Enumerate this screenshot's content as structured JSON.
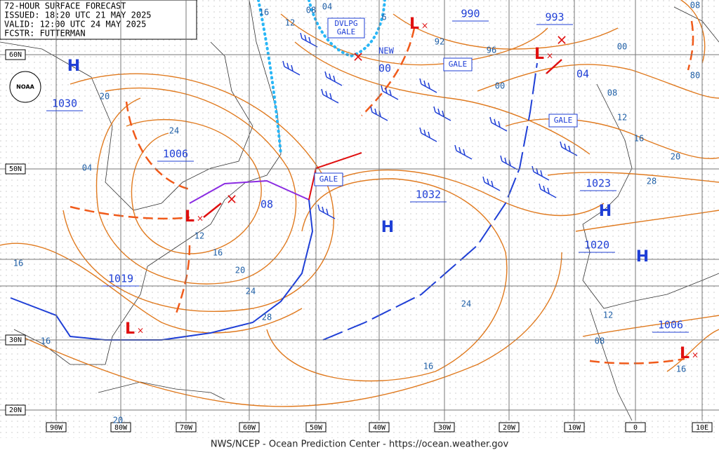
{
  "header": {
    "lines": [
      "72-HOUR SURFACE FORECAST",
      "ISSUED: 18:20 UTC 21 MAY 2025",
      "VALID:  12:00 UTC 24 MAY 2025",
      "FCSTR:  FUTTERMAN"
    ]
  },
  "logo": "NOAA",
  "latitude_labels": [
    "60N",
    "50N",
    "30N",
    "20N"
  ],
  "longitude_labels": [
    "90W",
    "80W",
    "70W",
    "60W",
    "50W",
    "40W",
    "30W",
    "20W",
    "10W",
    "0",
    "10E"
  ],
  "symbols": [
    "H",
    "L",
    "L",
    "L",
    "L",
    "H",
    "H",
    "H",
    "L"
  ],
  "pressure_labels": [
    "1030",
    "1006",
    "1019",
    "990",
    "993",
    "1032",
    "1023",
    "1020",
    "1006"
  ],
  "isobar_labels": [
    "16",
    "04",
    "08",
    "6",
    "12",
    "92",
    "96",
    "00",
    "00",
    "00",
    "08",
    "80",
    "04",
    "08",
    "12",
    "16",
    "20",
    "28",
    "20",
    "24",
    "04",
    "08",
    "12",
    "16",
    "20",
    "24",
    "28",
    "24",
    "16",
    "12",
    "08",
    "16",
    "16",
    "16",
    "20"
  ],
  "boxes": [
    "GALE",
    "GALE",
    "GALE"
  ],
  "developing_box": [
    "DVLPG",
    "GALE"
  ],
  "new_label": "NEW",
  "footer": "NWS/NCEP - Ocean Prediction Center - https://ocean.weather.gov"
}
